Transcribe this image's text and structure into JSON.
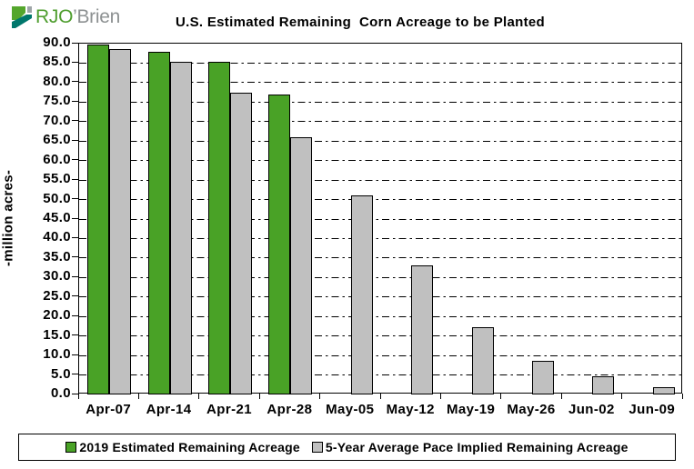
{
  "logo": {
    "text_green": "RJO",
    "text_gray": "’Brien",
    "colors": {
      "green": "#4F9E2F",
      "gray": "#8D9192",
      "icon_green": "#54A62C",
      "icon_teal": "#00776C",
      "icon_gray": "#9EA5A8"
    }
  },
  "chart_data": {
    "type": "bar",
    "title": "U.S. Estimated Remaining  Corn Acreage to be Planted",
    "xlabel": "",
    "ylabel": "-million acres-",
    "ylim": [
      0,
      90
    ],
    "ytick_step": 5,
    "yticks": [
      "90.0",
      "85.0",
      "80.0",
      "75.0",
      "70.0",
      "65.0",
      "60.0",
      "55.0",
      "50.0",
      "45.0",
      "40.0",
      "35.0",
      "30.0",
      "25.0",
      "20.0",
      "15.0",
      "10.0",
      "5.0",
      "0.0"
    ],
    "grid": {
      "horizontal": true,
      "style": "dash-dot",
      "every": 5
    },
    "legend_position": "bottom",
    "categories": [
      "Apr-07",
      "Apr-14",
      "Apr-21",
      "Apr-28",
      "May-05",
      "May-12",
      "May-19",
      "May-26",
      "Jun-02",
      "Jun-09"
    ],
    "series": [
      {
        "name": "2019 Estimated Remaining Acreage",
        "color": "#49A226",
        "values": [
          89.8,
          88.0,
          85.4,
          77.0,
          null,
          null,
          null,
          null,
          null,
          null
        ]
      },
      {
        "name": "5-Year Average Pace Implied Remaining Acreage",
        "color": "#C0C0C0",
        "values": [
          88.5,
          85.4,
          77.5,
          66.0,
          51.0,
          33.2,
          17.3,
          8.7,
          4.6,
          1.9
        ]
      }
    ]
  }
}
